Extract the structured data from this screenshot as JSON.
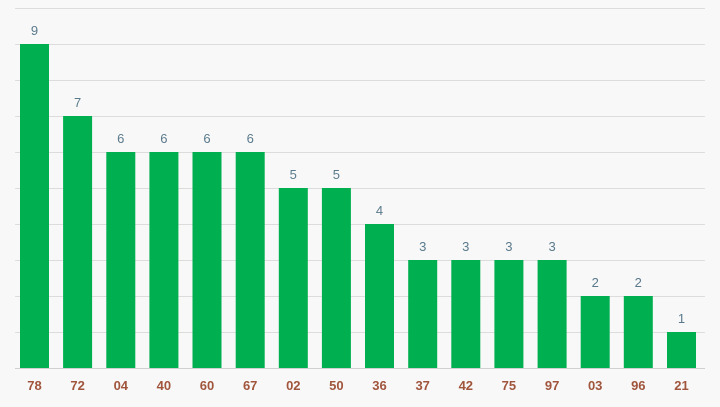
{
  "chart_data": {
    "type": "bar",
    "categories": [
      "78",
      "72",
      "04",
      "40",
      "60",
      "67",
      "02",
      "50",
      "36",
      "37",
      "42",
      "75",
      "97",
      "03",
      "96",
      "21"
    ],
    "values": [
      9,
      7,
      6,
      6,
      6,
      6,
      5,
      5,
      4,
      3,
      3,
      3,
      3,
      2,
      2,
      1
    ],
    "title": "",
    "xlabel": "",
    "ylabel": "",
    "ylim": [
      0,
      10
    ],
    "grid": true,
    "data_labels": true,
    "colors": {
      "bar": "#00b050",
      "value_label": "#5a7a8c",
      "category_label": "#a0553c",
      "grid": "#dcdcdc",
      "background": "#f8f8f8"
    }
  }
}
